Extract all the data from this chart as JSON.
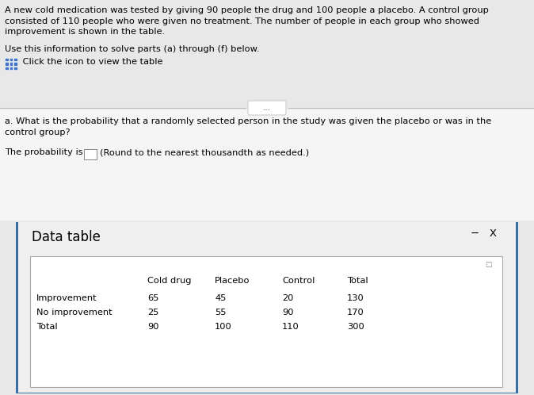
{
  "bg_top": "#e8e8e8",
  "bg_mid": "#f0f0f0",
  "bg_panel": "#efefef",
  "white": "#ffffff",
  "panel_border_color": "#3a6ea5",
  "table_border_color": "#aaaaaa",
  "paragraph1_lines": [
    "A new cold medication was tested by giving 90 people the drug and 100 people a placebo. A control group",
    "consisted of 110 people who were given no treatment. The number of people in each group who showed",
    "improvement is shown in the table."
  ],
  "paragraph2": "Use this information to solve parts (a) through (f) below.",
  "click_text": " Click the icon to view the table",
  "divider_button_text": "...",
  "question_a_lines": [
    "a. What is the probability that a randomly selected person in the study was given the placebo or was in the",
    "control group?"
  ],
  "prob_label": "The probability is",
  "prob_suffix": "(Round to the nearest thousandth as needed.)",
  "data_table_title": "Data table",
  "minus_x": "−   X",
  "table_headers": [
    "Cold drug",
    "Placebo",
    "Control",
    "Total"
  ],
  "table_rows": [
    [
      "Improvement",
      "65",
      "45",
      "20",
      "130"
    ],
    [
      "No improvement",
      "25",
      "55",
      "90",
      "170"
    ],
    [
      "Total",
      "90",
      "100",
      "110",
      "300"
    ]
  ]
}
